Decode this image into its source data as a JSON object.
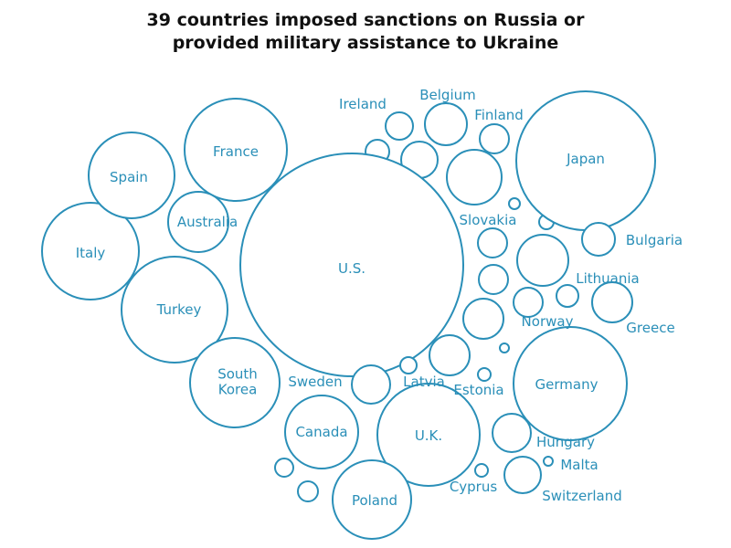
{
  "title_line1": "39 countries imposed sanctions on Russia or",
  "title_line2": "provided military assistance to Ukraine",
  "colors": {
    "bubble": "#2a8fb8",
    "label": "#2a8fb8",
    "title": "#111111"
  },
  "chart_data": {
    "type": "bubble",
    "title": "39 countries imposed sanctions on Russia or provided military assistance to Ukraine",
    "series": [
      {
        "name": "U.S.",
        "label": "U.S."
      },
      {
        "name": "Japan",
        "label": "Japan"
      },
      {
        "name": "Germany",
        "label": "Germany"
      },
      {
        "name": "U.K.",
        "label": "U.K."
      },
      {
        "name": "France",
        "label": "France"
      },
      {
        "name": "Turkey",
        "label": "Turkey"
      },
      {
        "name": "South Korea",
        "label": "South\nKorea"
      },
      {
        "name": "Italy",
        "label": "Italy"
      },
      {
        "name": "Spain",
        "label": "Spain"
      },
      {
        "name": "Canada",
        "label": "Canada"
      },
      {
        "name": "Poland",
        "label": "Poland"
      },
      {
        "name": "Australia",
        "label": "Australia"
      },
      {
        "name": "Ireland",
        "label": "Ireland"
      },
      {
        "name": "Belgium",
        "label": "Belgium"
      },
      {
        "name": "Finland",
        "label": "Finland"
      },
      {
        "name": "Slovakia",
        "label": "Slovakia"
      },
      {
        "name": "Bulgaria",
        "label": "Bulgaria"
      },
      {
        "name": "Lithuania",
        "label": "Lithuania"
      },
      {
        "name": "Norway",
        "label": "Norway"
      },
      {
        "name": "Greece",
        "label": "Greece"
      },
      {
        "name": "Sweden",
        "label": "Sweden"
      },
      {
        "name": "Latvia",
        "label": "Latvia"
      },
      {
        "name": "Estonia",
        "label": "Estonia"
      },
      {
        "name": "Hungary",
        "label": "Hungary"
      },
      {
        "name": "Malta",
        "label": "Malta"
      },
      {
        "name": "Cyprus",
        "label": "Cyprus"
      },
      {
        "name": "Switzerland",
        "label": "Switzerland"
      }
    ]
  }
}
